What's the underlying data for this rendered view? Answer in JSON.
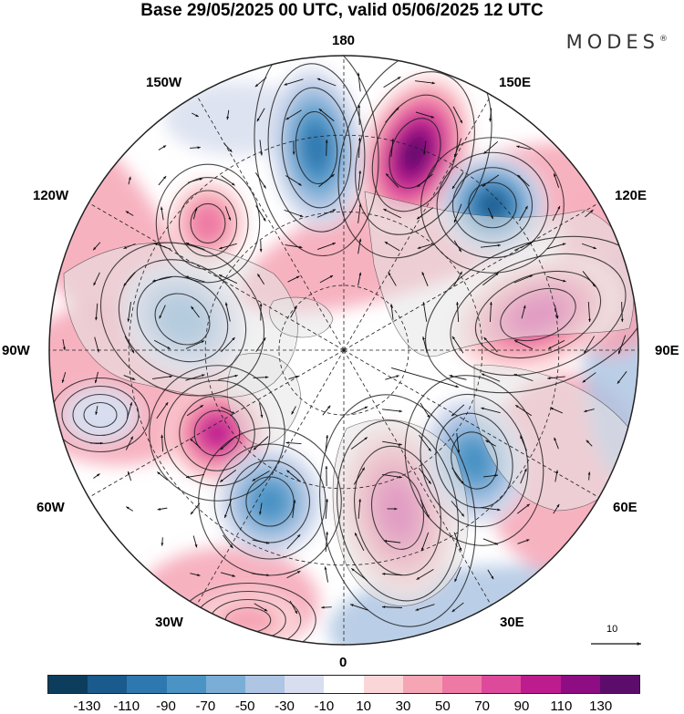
{
  "title": "Base 29/05/2025 00 UTC, valid 05/06/2025 12 UTC",
  "brand": "MODES",
  "brand_mark": "®",
  "longitude_labels": [
    "180",
    "150E",
    "120E",
    "90E",
    "60E",
    "30E",
    "0",
    "30W",
    "60W",
    "90W",
    "120W",
    "150W"
  ],
  "reference_vector": {
    "label": "10"
  },
  "colorbar": {
    "ticks": [
      "-130",
      "-110",
      "-90",
      "-70",
      "-50",
      "-30",
      "-10",
      "10",
      "30",
      "50",
      "70",
      "90",
      "110",
      "130"
    ],
    "colors": [
      "#0d3d5c",
      "#1a5a8c",
      "#2e78b0",
      "#4a93c4",
      "#7aaed6",
      "#aec5e3",
      "#d8deef",
      "#ffffff",
      "#fbd6d8",
      "#f6a5b5",
      "#ee79a4",
      "#dd4a9c",
      "#bd1c8e",
      "#8e0d82",
      "#5c0d6b"
    ]
  },
  "colors": {
    "land_gray": "#e6e6e6",
    "coast": "#333333",
    "grid": "#222222"
  }
}
